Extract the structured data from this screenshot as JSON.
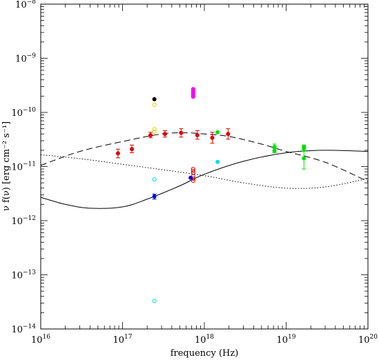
{
  "chart_data": {
    "type": "scatter",
    "title": "",
    "xlabel": "frequency (Hz)",
    "ylabel": "ν f(ν)  [erg cm⁻² s⁻¹]",
    "xscale": "log",
    "yscale": "log",
    "xlim": [
      1e+16,
      1e+20
    ],
    "ylim": [
      1e-14,
      1e-08
    ],
    "grid": false,
    "x_tick_labels": [
      {
        "base": "10",
        "exp": "16",
        "value": 1e+16
      },
      {
        "base": "10",
        "exp": "17",
        "value": 1e+17
      },
      {
        "base": "10",
        "exp": "18",
        "value": 1e+18
      },
      {
        "base": "10",
        "exp": "19",
        "value": 1e+19
      },
      {
        "base": "10",
        "exp": "20",
        "value": 1e+20
      }
    ],
    "y_tick_labels": [
      {
        "base": "10",
        "exp": "−14",
        "value": 1e-14
      },
      {
        "base": "10",
        "exp": "−13",
        "value": 1e-13
      },
      {
        "base": "10",
        "exp": "−12",
        "value": 1e-12
      },
      {
        "base": "10",
        "exp": "−11",
        "value": 1e-11
      },
      {
        "base": "10",
        "exp": "−10",
        "value": 1e-10
      },
      {
        "base": "10",
        "exp": "−9",
        "value": 1e-09
      },
      {
        "base": "10",
        "exp": "−8",
        "value": 1e-08
      }
    ],
    "series": [
      {
        "color": "#e00000",
        "marker": "filled",
        "points": [
          {
            "x": 8.8e+16,
            "y": 1.75e-11,
            "yerr": [
              1.45e-11,
              2.1e-11
            ]
          },
          {
            "x": 1.3e+17,
            "y": 2.1e-11,
            "yerr": [
              1.8e-11,
              2.5e-11
            ]
          },
          {
            "x": 2.2e+17,
            "y": 3.8e-11,
            "yerr": [
              3.4e-11,
              4.3e-11
            ]
          },
          {
            "x": 3.3e+17,
            "y": 4e-11,
            "yerr": [
              3.5e-11,
              4.6e-11
            ]
          },
          {
            "x": 5.2e+17,
            "y": 4.2e-11,
            "yerr": [
              3.5e-11,
              5e-11
            ]
          },
          {
            "x": 8.2e+17,
            "y": 3.8e-11,
            "yerr": [
              3.2e-11,
              4.6e-11
            ]
          },
          {
            "x": 1.25e+18,
            "y": 3.4e-11,
            "yerr": [
              2.7e-11,
              4.3e-11
            ]
          },
          {
            "x": 1.95e+18,
            "y": 4e-11,
            "yerr": [
              3.2e-11,
              5e-11
            ]
          }
        ]
      },
      {
        "color": "#e00000",
        "marker": "open",
        "points": [
          {
            "x": 7.3e+17,
            "y": 9e-12
          },
          {
            "x": 7.3e+17,
            "y": 8.3e-12
          },
          {
            "x": 7.3e+17,
            "y": 7.6e-12
          },
          {
            "x": 7.3e+17,
            "y": 6.6e-12
          },
          {
            "x": 7.3e+17,
            "y": 6e-12
          },
          {
            "x": 7.3e+17,
            "y": 5.5e-12
          }
        ]
      },
      {
        "color": "#000000",
        "marker": "filled",
        "points": [
          {
            "x": 2.45e+17,
            "y": 1.75e-10
          }
        ]
      },
      {
        "color": "#e8d000",
        "marker": "open",
        "points": [
          {
            "x": 2.45e+17,
            "y": 1.38e-10
          },
          {
            "x": 2.45e+17,
            "y": 4.9e-11
          },
          {
            "x": 2.45e+17,
            "y": 4.4e-11
          }
        ]
      },
      {
        "color": "#ff00ff",
        "marker": "filled",
        "points": [
          {
            "x": 7.3e+17,
            "y": 2.7e-10
          },
          {
            "x": 7.3e+17,
            "y": 2.5e-10
          },
          {
            "x": 7.3e+17,
            "y": 2.35e-10
          },
          {
            "x": 7.3e+17,
            "y": 2.2e-10
          },
          {
            "x": 7.3e+17,
            "y": 2.05e-10
          },
          {
            "x": 7.3e+17,
            "y": 1.95e-10
          }
        ]
      },
      {
        "color": "#0000e0",
        "marker": "filled",
        "points": [
          {
            "x": 2.45e+17,
            "y": 2.8e-12,
            "yerr": [
              2.5e-12,
              3.1e-12
            ]
          },
          {
            "x": 6.8e+17,
            "y": 6.2e-12
          }
        ]
      },
      {
        "color": "#00e0e0",
        "marker": "filled",
        "points": [
          {
            "x": 1.45e+18,
            "y": 1.22e-11
          }
        ]
      },
      {
        "color": "#00e0e0",
        "marker": "open",
        "points": [
          {
            "x": 2.45e+17,
            "y": 5.8e-12
          },
          {
            "x": 2.45e+17,
            "y": 3.3e-14
          }
        ]
      },
      {
        "color": "#00e000",
        "marker": "filled",
        "points": [
          {
            "x": 1.45e+18,
            "y": 4.3e-11
          },
          {
            "x": 7.2e+18,
            "y": 2.3e-11,
            "yerr": [
              2e-11,
              2.6e-11
            ]
          },
          {
            "x": 7.2e+18,
            "y": 1.95e-11,
            "yerr": [
              1.8e-11,
              2.15e-11
            ]
          },
          {
            "x": 1.65e+19,
            "y": 2.3e-11,
            "yerr": [
              2.05e-11,
              2.5e-11
            ]
          },
          {
            "x": 1.65e+19,
            "y": 2.15e-11,
            "yerr": [
              1.9e-11,
              2.4e-11
            ]
          },
          {
            "x": 1.65e+19,
            "y": 1.42e-11,
            "yerr": [
              9e-12,
              1.95e-11
            ]
          }
        ]
      }
    ],
    "curves": [
      {
        "style": "dashed",
        "points": [
          [
            1e+16,
            1.05e-11
          ],
          [
            3e+16,
            1.9e-11
          ],
          [
            1e+17,
            2.9e-11
          ],
          [
            3e+17,
            4e-11
          ],
          [
            6e+17,
            4.2e-11
          ],
          [
            1e+18,
            4e-11
          ],
          [
            2e+18,
            3.6e-11
          ],
          [
            5e+18,
            2.6e-11
          ],
          [
            1e+19,
            1.9e-11
          ],
          [
            3e+19,
            1.2e-11
          ],
          [
            1e+20,
            5.3e-12
          ]
        ]
      },
      {
        "style": "dotted",
        "points": [
          [
            1e+16,
            1.65e-11
          ],
          [
            3e+16,
            1.4e-11
          ],
          [
            1e+17,
            1.1e-11
          ],
          [
            3e+17,
            8.8e-12
          ],
          [
            1e+18,
            6.8e-12
          ],
          [
            3e+18,
            5e-12
          ],
          [
            1e+19,
            4e-12
          ],
          [
            3e+19,
            4.2e-12
          ],
          [
            1e+20,
            6e-12
          ]
        ]
      },
      {
        "style": "solid",
        "points": [
          [
            1e+16,
            2.7e-12
          ],
          [
            2e+16,
            2e-12
          ],
          [
            4e+16,
            1.7e-12
          ],
          [
            1e+17,
            1.8e-12
          ],
          [
            2e+17,
            2.5e-12
          ],
          [
            5e+17,
            4.4e-12
          ],
          [
            1e+18,
            7.2e-12
          ],
          [
            3e+18,
            1.25e-11
          ],
          [
            1e+19,
            1.8e-11
          ],
          [
            3e+19,
            2e-11
          ],
          [
            1e+20,
            1.9e-11
          ]
        ]
      }
    ]
  }
}
